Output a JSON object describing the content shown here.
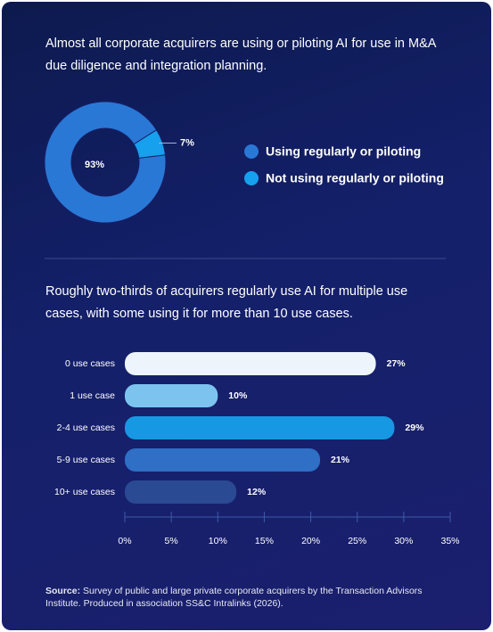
{
  "chart_data": [
    {
      "type": "donut",
      "title": "Almost all corporate acquirers are using or piloting AI for use in M&A due diligence and integration planning.",
      "categories": [
        "Using regularly or piloting",
        "Not using regularly or piloting"
      ],
      "values": [
        93,
        7
      ],
      "value_labels": [
        "93%",
        "7%"
      ],
      "colors": [
        "#2a78d6",
        "#17a0ee"
      ]
    },
    {
      "type": "hbar",
      "title": "Roughly two-thirds of acquirers regularly use AI for multiple use cases, with some using it for more than 10 use cases.",
      "categories": [
        "0 use cases",
        "1 use case",
        "2-4 use cases",
        "5-9 use cases",
        "10+ use cases"
      ],
      "values": [
        27,
        10,
        29,
        21,
        12
      ],
      "value_labels": [
        "27%",
        "10%",
        "29%",
        "21%",
        "12%"
      ],
      "colors": [
        "#eef4fb",
        "#7cc4ef",
        "#1798e3",
        "#2f6fc6",
        "#2a4a93"
      ],
      "xlim": [
        0,
        35
      ],
      "xticks": [
        {
          "value": 0,
          "label": "0%"
        },
        {
          "value": 5,
          "label": "5%"
        },
        {
          "value": 10,
          "label": "10%"
        },
        {
          "value": 15,
          "label": "15%"
        },
        {
          "value": 20,
          "label": "20%"
        },
        {
          "value": 25,
          "label": "25%"
        },
        {
          "value": 30,
          "label": "30%"
        },
        {
          "value": 35,
          "label": "35%"
        }
      ]
    }
  ],
  "source_label": "Source:",
  "source": "Survey of public and large private corporate acquirers by the Transaction Advisors Institute. Produced in association SS&C Intralinks (2026)."
}
